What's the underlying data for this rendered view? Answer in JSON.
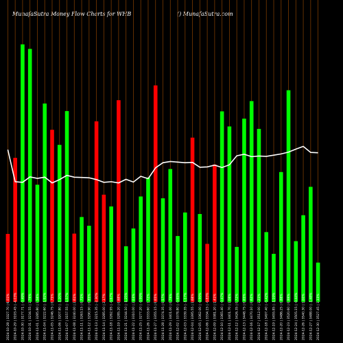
{
  "header": {
    "title": "MunafaSutra  Money Flow  Charts for WHB",
    "site": "() MunafaSutra.com"
  },
  "chart_data": {
    "type": "bar",
    "title": "MunafaSutra  Money Flow  Charts for WHB",
    "xlabel": "",
    "ylabel": "",
    "ylim": [
      0,
      100
    ],
    "grid": false,
    "legend": "none",
    "colors": {
      "up": "#00ff00",
      "down": "#ff0000",
      "line": "#ffffff",
      "grid": "#7a3a00",
      "background": "#000000"
    },
    "categories": [
      "2024-10-28 | 3327.70 | 6.01%",
      "2024-10-29 | 3193.45 | -4.03%",
      "2024-10-30 | 3177.71 | -0.49%",
      "2024-10-31 | 3234.55 | 1.79%",
      "2024-11-01 | 3285.80 | 1.58%",
      "2024-11-04 | 3222.60 | -1.92%",
      "2024-11-05 | 3246.75 | 0.75%",
      "2024-11-06 | 3207.80 | -1.20%",
      "2024-11-07 | 3157.55 | -1.57%",
      "2024-11-08 | 3240.00 | 2.61%",
      "2024-11-11 | 3263.15 | 0.71%",
      "2024-11-12 | 3290.90 | 0.85%",
      "2024-11-13 | 3215.35 | -2.30%",
      "2024-11-14 | 3285.00 | 2.17%",
      "2024-11-18 | 3262.95 | -0.67%",
      "2024-11-19 | 3285.20 | 0.68%",
      "2024-11-21 | 3244.10 | -1.25%",
      "2024-11-22 | 3310.00 | 2.03%",
      "2024-11-25 | 3277.20 | -0.99%",
      "2024-11-26 | 3333.60 | 1.72%",
      "2024-11-27 | 3355.15 | 0.65%",
      "2024-11-28 | 3374.35 | 0.57%",
      "2024-11-29 | 3401.00 | 0.79%",
      "2024-12-02 | 3378.80 | -0.65%",
      "2024-12-03 | 3339.35 | -1.17%",
      "2024-12-04 | 3395.55 | 1.68%",
      "2024-12-05 | 3362.00 | -0.99%",
      "2024-12-06 | 3334.15 | -0.83%",
      "2024-12-09 | 3381.20 | 1.41%",
      "2024-12-10 | 3365.40 | -0.47%",
      "2024-12-11 | 3401.70 | 1.08%",
      "2024-12-12 | 3426.35 | 0.72%",
      "2024-12-13 | 3448.75 | 0.65%",
      "2024-12-16 | 3470.10 | 0.62%",
      "2024-12-17 | 3512.00 | 1.21%",
      "2024-12-18 | 3497.40 | -0.42%",
      "2024-12-19 | 3455.85 | -1.19%",
      "2024-12-20 | 3486.25 | 0.88%",
      "2024-12-23 | 3520.60 | 0.99%",
      "2024-12-24 | 3505.15 | -0.44%",
      "2024-12-26 | 3540.30 | 1.00%",
      "2024-12-27 | 3488.00 | -1.48%",
      "2024-12-30 | 3527.45 | 1.13%"
    ],
    "series": [
      {
        "kind": "bars",
        "values": [
          22.5,
          47.7,
          85.3,
          83.8,
          38.8,
          65.7,
          57.0,
          52.0,
          63.2,
          22.6,
          28.1,
          25.2,
          59.8,
          35.5,
          31.6,
          66.8,
          18.4,
          24.3,
          34.9,
          41.2,
          71.7,
          34.3,
          44.0,
          21.8,
          29.6,
          54.4,
          29.1,
          19.2,
          45.5,
          63.1,
          58.1,
          18.2,
          60.7,
          66.5,
          57.3,
          23.1,
          15.9,
          43.0,
          70.1,
          20.1,
          28.7,
          38.1,
          13.0
        ],
        "direction": [
          "down",
          "down",
          "up",
          "up",
          "up",
          "up",
          "down",
          "up",
          "up",
          "down",
          "up",
          "up",
          "down",
          "down",
          "up",
          "down",
          "up",
          "up",
          "up",
          "up",
          "down",
          "up",
          "up",
          "up",
          "up",
          "down",
          "up",
          "down",
          "down",
          "up",
          "up",
          "up",
          "up",
          "up",
          "up",
          "up",
          "up",
          "up",
          "up",
          "up",
          "up",
          "up",
          "up"
        ]
      },
      {
        "kind": "line",
        "values": [
          50.4,
          39.8,
          39.6,
          41.4,
          40.9,
          41.3,
          39.4,
          40.5,
          41.9,
          41.3,
          41.2,
          41.1,
          40.5,
          39.6,
          39.8,
          39.4,
          40.6,
          39.7,
          41.6,
          40.8,
          44.4,
          46.1,
          46.5,
          46.3,
          46.1,
          46.2,
          44.6,
          44.7,
          45.3,
          44.5,
          45.4,
          48.4,
          48.9,
          48.1,
          48.3,
          48.2,
          48.6,
          49.0,
          49.6,
          50.6,
          51.5,
          49.5,
          49.4
        ]
      }
    ]
  }
}
